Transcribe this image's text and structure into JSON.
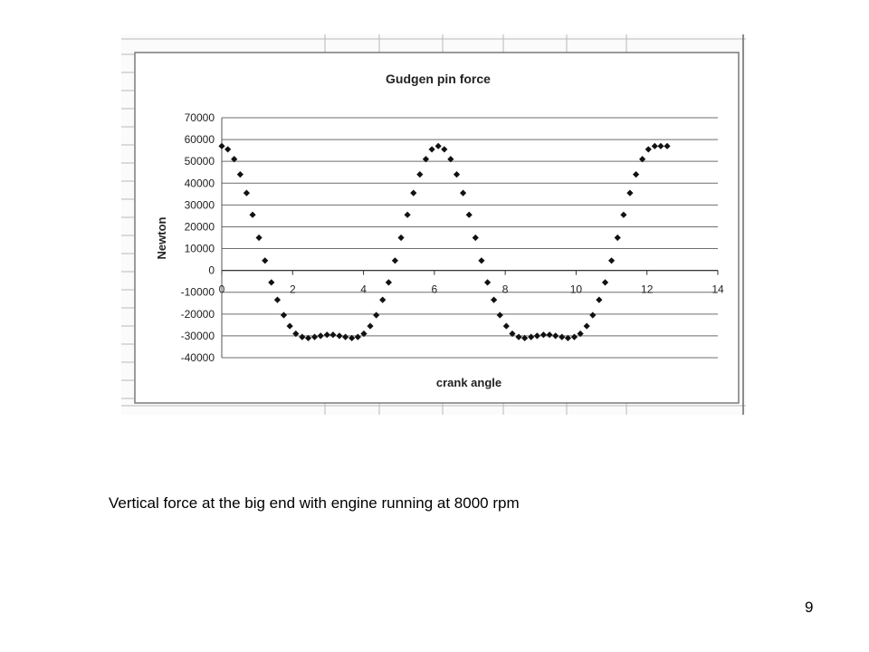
{
  "slide": {
    "caption": "Vertical force at the big end with engine running at 8000 rpm",
    "page_number": "9"
  },
  "chart_data": {
    "type": "scatter",
    "title": "Gudgen pin force",
    "xlabel": "crank angle",
    "ylabel": "Newton",
    "xlim": [
      0,
      14
    ],
    "ylim": [
      -40000,
      70000
    ],
    "x_ticks": [
      "0",
      "2",
      "4",
      "6",
      "8",
      "10",
      "12",
      "14"
    ],
    "y_ticks": [
      "70000",
      "60000",
      "50000",
      "40000",
      "30000",
      "20000",
      "10000",
      "0",
      "-10000",
      "-20000",
      "-30000",
      "-40000"
    ],
    "grid": "horizontal",
    "marker": "diamond",
    "marker_color": "#111111",
    "x": [
      0.0,
      0.17,
      0.35,
      0.52,
      0.7,
      0.87,
      1.05,
      1.22,
      1.4,
      1.57,
      1.75,
      1.92,
      2.09,
      2.27,
      2.44,
      2.62,
      2.79,
      2.97,
      3.14,
      3.32,
      3.49,
      3.67,
      3.84,
      4.01,
      4.19,
      4.36,
      4.54,
      4.71,
      4.89,
      5.06,
      5.24,
      5.41,
      5.59,
      5.76,
      5.93,
      6.11,
      6.28,
      6.46,
      6.63,
      6.81,
      6.98,
      7.16,
      7.33,
      7.5,
      7.68,
      7.85,
      8.03,
      8.2,
      8.38,
      8.55,
      8.73,
      8.9,
      9.08,
      9.25,
      9.42,
      9.6,
      9.77,
      9.95,
      10.12,
      10.3,
      10.47,
      10.65,
      10.82,
      11.0,
      11.17,
      11.34,
      11.52,
      11.69,
      11.87,
      12.04,
      12.22,
      12.39,
      12.57
    ],
    "y": [
      57000,
      55500,
      51000,
      44000,
      35500,
      25500,
      15000,
      4500,
      -5500,
      -13500,
      -20500,
      -25500,
      -29000,
      -30500,
      -31000,
      -30500,
      -30000,
      -29500,
      -29500,
      -30000,
      -30500,
      -31000,
      -30500,
      -29000,
      -25500,
      -20500,
      -13500,
      -5500,
      4500,
      15000,
      25500,
      35500,
      44000,
      51000,
      55500,
      57000,
      55500,
      51000,
      44000,
      35500,
      25500,
      15000,
      4500,
      -5500,
      -13500,
      -20500,
      -25500,
      -29000,
      -30500,
      -31000,
      -30500,
      -30000,
      -29500,
      -29500,
      -30000,
      -30500,
      -31000,
      -30500,
      -29000,
      -25500,
      -20500,
      -13500,
      -5500,
      4500,
      15000,
      25500,
      35500,
      44000,
      51000,
      55500,
      57000,
      57000,
      57000
    ]
  }
}
